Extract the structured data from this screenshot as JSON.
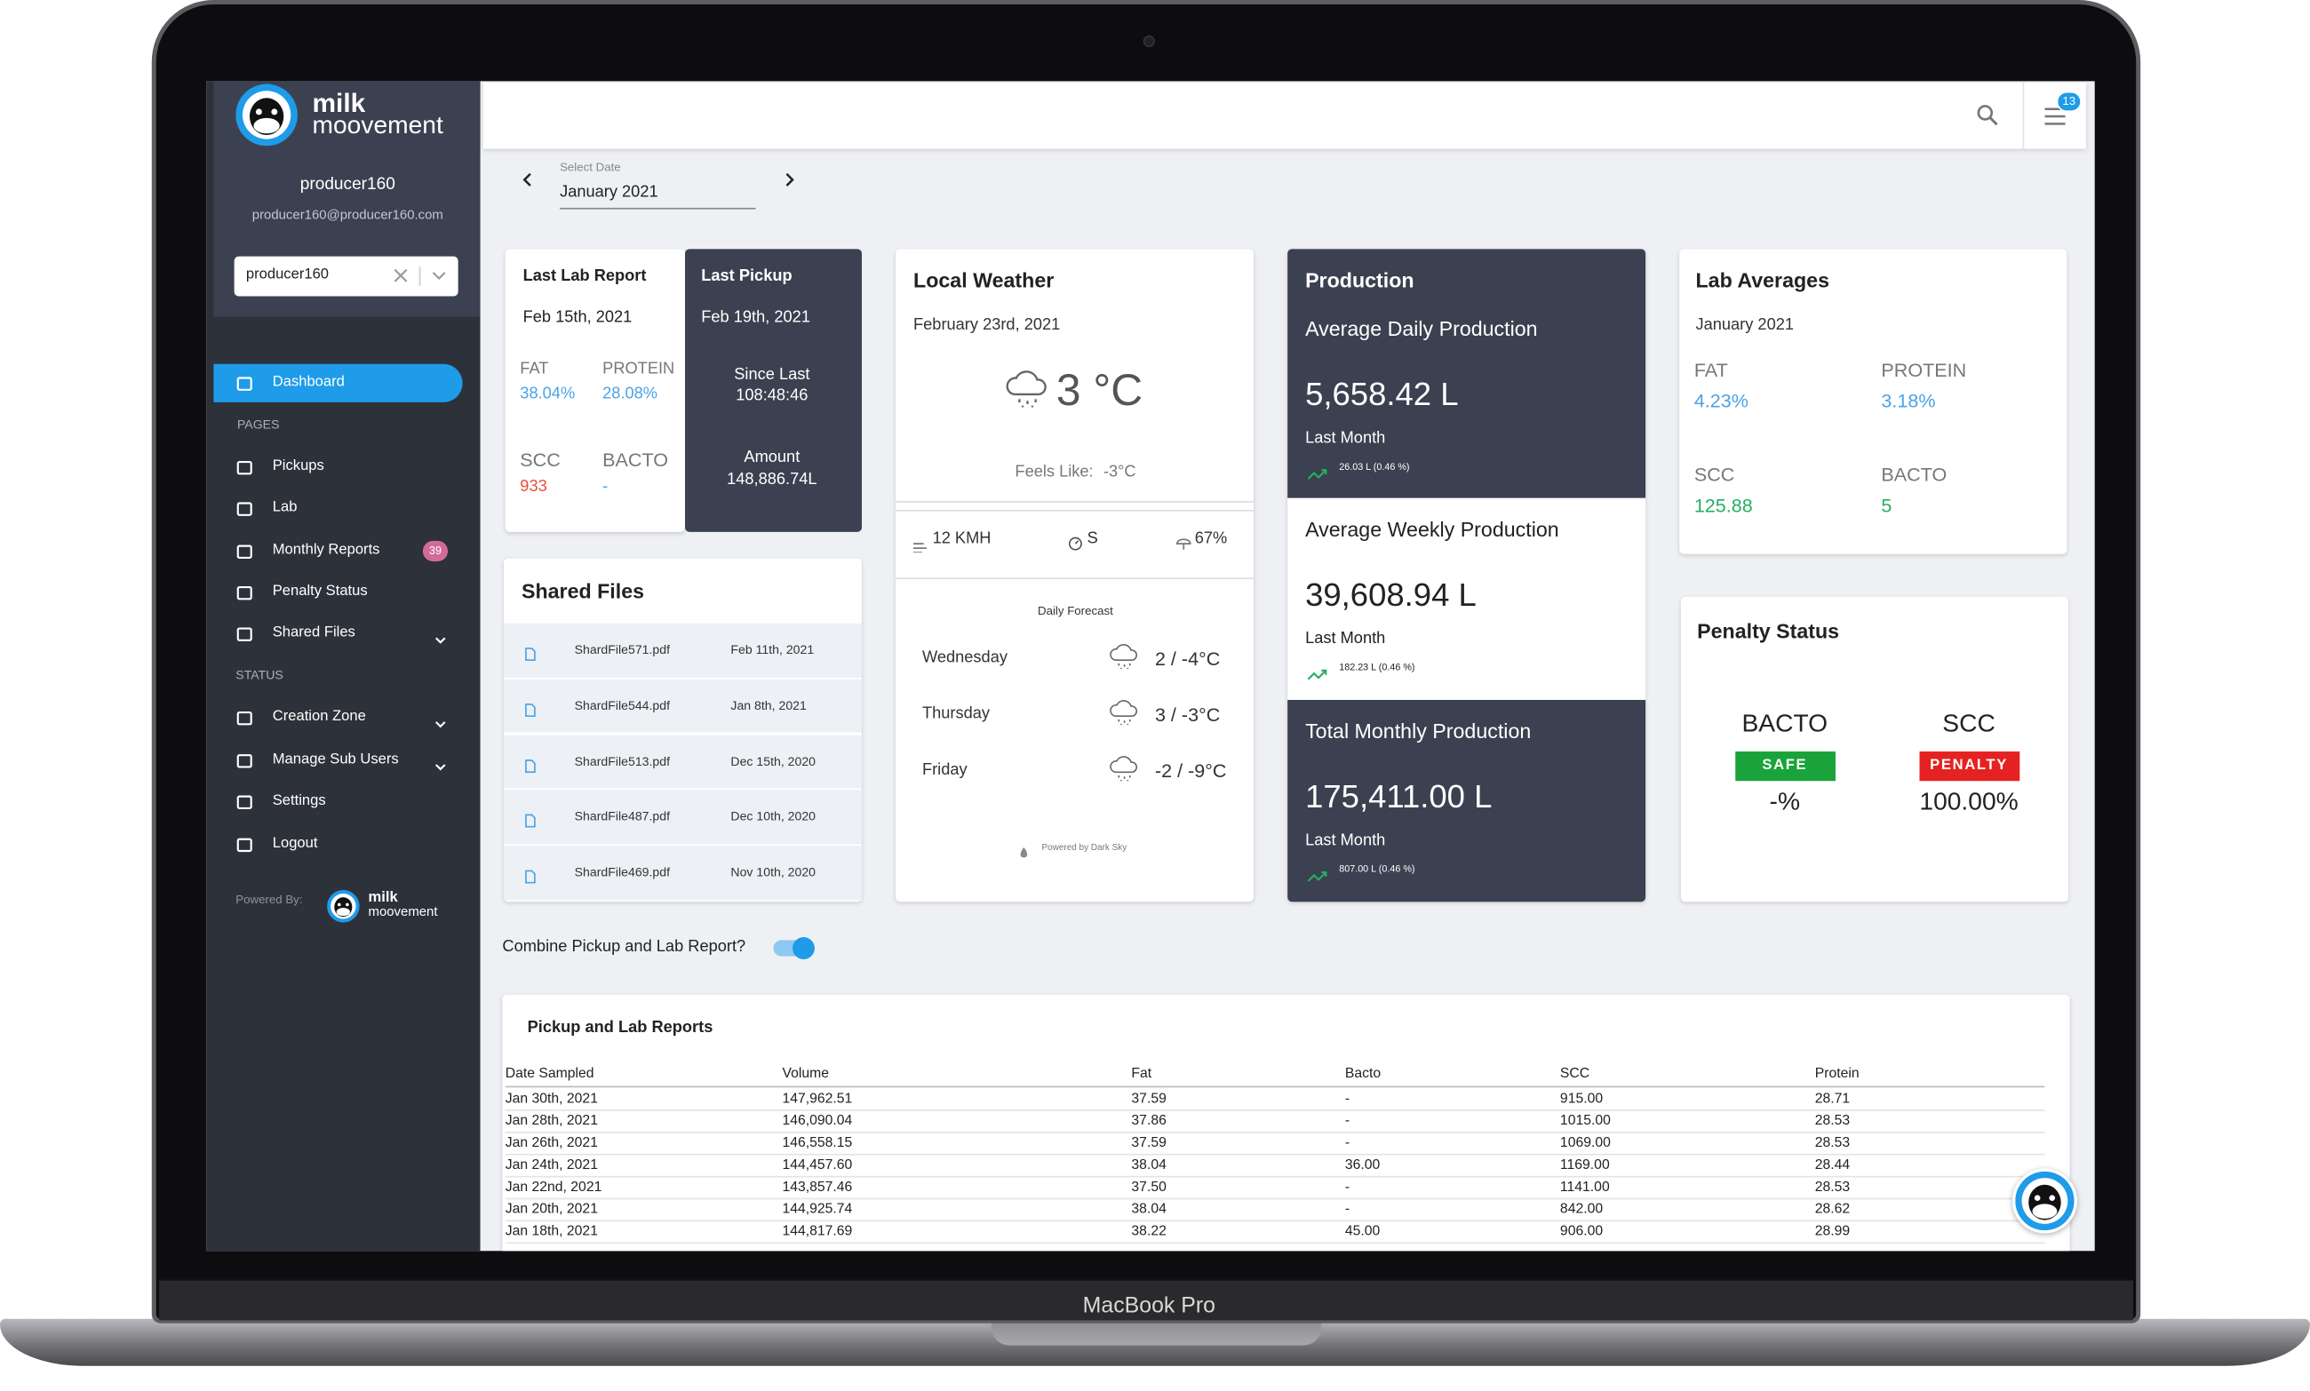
{
  "device": {
    "model": "MacBook Pro"
  },
  "sidebar": {
    "brand": {
      "line1": "milk",
      "line2": "moovement"
    },
    "user": {
      "name": "producer160",
      "email": "producer160@producer160.com"
    },
    "account_select": "producer160",
    "sections": {
      "pages": "PAGES",
      "status": "STATUS"
    },
    "nav": [
      {
        "label": "Dashboard",
        "active": true
      },
      {
        "label": "Pickups"
      },
      {
        "label": "Lab"
      },
      {
        "label": "Monthly Reports",
        "badge": "39"
      },
      {
        "label": "Penalty Status"
      },
      {
        "label": "Shared Files",
        "expandable": true
      },
      {
        "label": "Creation Zone",
        "expandable": true
      },
      {
        "label": "Manage Sub Users",
        "expandable": true
      },
      {
        "label": "Settings"
      },
      {
        "label": "Logout"
      }
    ],
    "powered_by": {
      "label": "Powered By:",
      "line1": "milk",
      "line2": "moovement"
    }
  },
  "topbar": {
    "notification_count": "13"
  },
  "date_picker": {
    "label": "Select Date",
    "value": "January 2021"
  },
  "last_lab_report": {
    "title": "Last Lab Report",
    "date": "Feb 15th, 2021",
    "fat_label": "FAT",
    "fat": "38.04%",
    "protein_label": "PROTEIN",
    "protein": "28.08%",
    "scc_label": "SCC",
    "scc": "933",
    "bacto_label": "BACTO",
    "bacto": "-"
  },
  "last_pickup": {
    "title": "Last Pickup",
    "date": "Feb 19th, 2021",
    "since_label": "Since Last",
    "since": "108:48:46",
    "amount_label": "Amount",
    "amount": "148,886.74L"
  },
  "shared_files": {
    "title": "Shared Files",
    "files": [
      {
        "name": "ShardFile571.pdf",
        "date": "Feb 11th, 2021"
      },
      {
        "name": "ShardFile544.pdf",
        "date": "Jan 8th, 2021"
      },
      {
        "name": "ShardFile513.pdf",
        "date": "Dec 15th, 2020"
      },
      {
        "name": "ShardFile487.pdf",
        "date": "Dec 10th, 2020"
      },
      {
        "name": "ShardFile469.pdf",
        "date": "Nov 10th, 2020"
      }
    ]
  },
  "weather": {
    "title": "Local Weather",
    "date": "February 23rd, 2021",
    "temperature": "3 °C",
    "feels_like_label": "Feels Like:",
    "feels_like": "-3°C",
    "wind": "12 KMH",
    "direction": "S",
    "humidity": "67%",
    "forecast_title": "Daily Forecast",
    "forecast": [
      {
        "day": "Wednesday",
        "temps": "2 / -4°C"
      },
      {
        "day": "Thursday",
        "temps": "3 / -3°C"
      },
      {
        "day": "Friday",
        "temps": "-2 / -9°C"
      }
    ],
    "credit": "Powered by Dark Sky"
  },
  "production": {
    "title": "Production",
    "sections": [
      {
        "label": "Average Daily Production",
        "value": "5,658.42 L",
        "period": "Last Month",
        "change": "26.03 L (0.46 %)"
      },
      {
        "label": "Average Weekly Production",
        "value": "39,608.94 L",
        "period": "Last Month",
        "change": "182.23 L (0.46 %)"
      },
      {
        "label": "Total Monthly Production",
        "value": "175,411.00 L",
        "period": "Last Month",
        "change": "807.00 L (0.46 %)"
      }
    ]
  },
  "lab_averages": {
    "title": "Lab Averages",
    "period": "January 2021",
    "metrics": [
      {
        "label": "FAT",
        "value": "4.23%",
        "color": "#4aa3e8"
      },
      {
        "label": "PROTEIN",
        "value": "3.18%",
        "color": "#4aa3e8"
      },
      {
        "label": "SCC",
        "value": "125.88",
        "color": "#27ae60"
      },
      {
        "label": "BACTO",
        "value": "5",
        "color": "#27ae60"
      }
    ]
  },
  "penalty_status": {
    "title": "Penalty Status",
    "items": [
      {
        "label": "BACTO",
        "status": "SAFE",
        "value": "-%",
        "color": "#1aa33a"
      },
      {
        "label": "SCC",
        "status": "PENALTY",
        "value": "100.00%",
        "color": "#e52222"
      }
    ]
  },
  "combine_toggle": {
    "label": "Combine Pickup and Lab Report?",
    "on": true
  },
  "table": {
    "title": "Pickup and Lab Reports",
    "columns": [
      "Date Sampled",
      "Volume",
      "Fat",
      "Bacto",
      "SCC",
      "Protein"
    ],
    "rows": [
      [
        "Jan 30th, 2021",
        "147,962.51",
        "37.59",
        "-",
        "915.00",
        "28.71"
      ],
      [
        "Jan 28th, 2021",
        "146,090.04",
        "37.86",
        "-",
        "1015.00",
        "28.53"
      ],
      [
        "Jan 26th, 2021",
        "146,558.15",
        "37.59",
        "-",
        "1069.00",
        "28.53"
      ],
      [
        "Jan 24th, 2021",
        "144,457.60",
        "38.04",
        "36.00",
        "1169.00",
        "28.44"
      ],
      [
        "Jan 22nd, 2021",
        "143,857.46",
        "37.50",
        "-",
        "1141.00",
        "28.53"
      ],
      [
        "Jan 20th, 2021",
        "144,925.74",
        "38.04",
        "-",
        "842.00",
        "28.62"
      ],
      [
        "Jan 18th, 2021",
        "144,817.69",
        "38.22",
        "45.00",
        "906.00",
        "28.99"
      ]
    ]
  }
}
